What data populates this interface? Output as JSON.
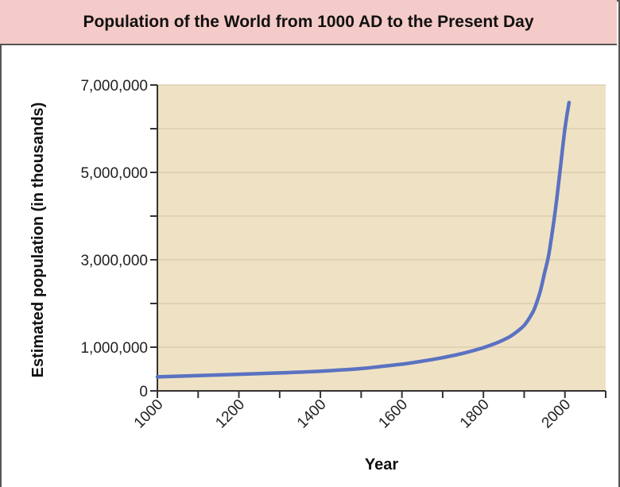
{
  "chart_data": {
    "type": "line",
    "title": "Population of the World from 1000 AD to the Present Day",
    "xlabel": "Year",
    "ylabel": "Estimated population (in thousands)",
    "xlim": [
      1000,
      2100
    ],
    "ylim": [
      0,
      7000000
    ],
    "x_ticks": [
      1000,
      1200,
      1400,
      1600,
      1800,
      2000
    ],
    "x_tick_labels": [
      "1000",
      "1200",
      "1400",
      "1600",
      "1800",
      "2000"
    ],
    "y_ticks": [
      0,
      1000000,
      3000000,
      5000000,
      7000000
    ],
    "y_tick_labels": [
      "0",
      "1,000,000",
      "3,000,000",
      "5,000,000",
      "7,000,000"
    ],
    "y_minor_ticks": [
      2000000,
      4000000,
      6000000
    ],
    "grid": true,
    "colors": {
      "line": "#5b72c2",
      "plot_background": "#efe2c4",
      "title_background": "#f4cbc8",
      "gridline": "#d7c9a8"
    },
    "series": [
      {
        "x": [
          1000,
          1100,
          1200,
          1300,
          1400,
          1500,
          1550,
          1600,
          1650,
          1700,
          1750,
          1800,
          1830,
          1850,
          1870,
          1900,
          1920,
          1930,
          1940,
          1950,
          1960,
          1970,
          1980,
          1990,
          2000,
          2010
        ],
        "y": [
          320000,
          350000,
          380000,
          410000,
          450000,
          510000,
          560000,
          610000,
          680000,
          760000,
          860000,
          990000,
          1090000,
          1170000,
          1270000,
          1500000,
          1780000,
          2000000,
          2300000,
          2700000,
          3100000,
          3700000,
          4400000,
          5200000,
          6000000,
          6600000
        ]
      }
    ]
  }
}
